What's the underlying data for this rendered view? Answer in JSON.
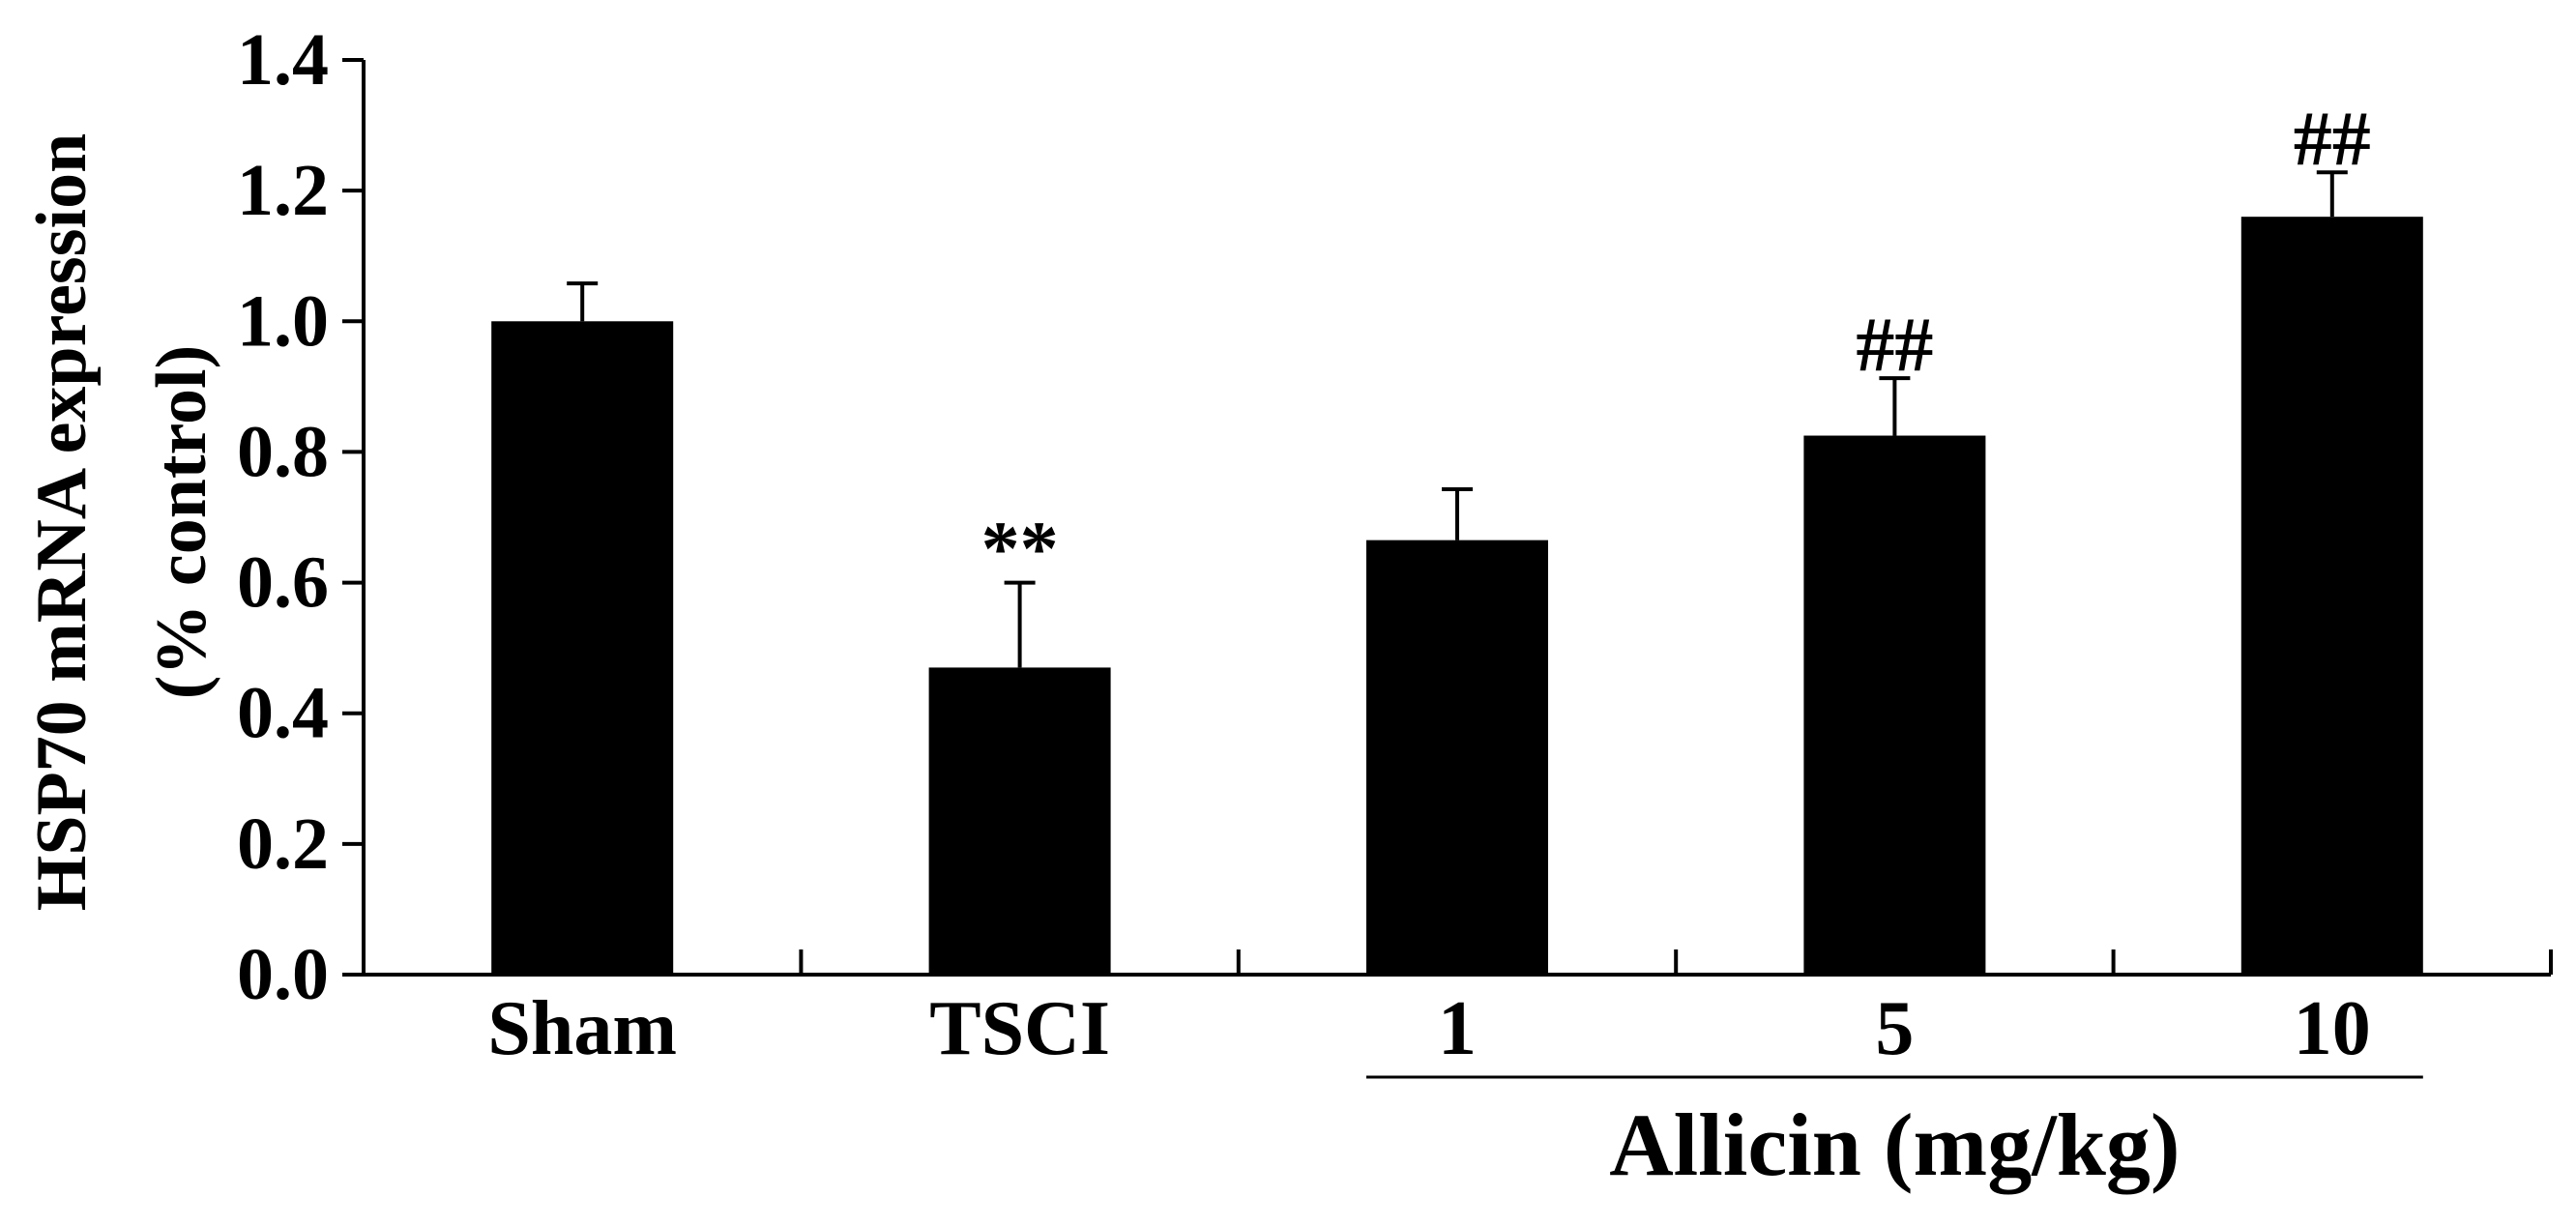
{
  "chart_data": {
    "type": "bar",
    "categories": [
      "Sham",
      "TSCI",
      "1",
      "5",
      "10"
    ],
    "values": [
      1.0,
      0.47,
      0.665,
      0.825,
      1.16
    ],
    "errors": [
      0.058,
      0.13,
      0.078,
      0.088,
      0.068
    ],
    "annotations": [
      "",
      "**",
      "",
      "##",
      "##"
    ],
    "ylabel_line1": "HSP70 mRNA expression",
    "ylabel_line2": "(% control)",
    "group_label": "Allicin (mg/kg)",
    "group_range": [
      "1",
      "10"
    ],
    "ylim": [
      0,
      1.4
    ],
    "yticks": [
      "0.0",
      "0.2",
      "0.4",
      "0.6",
      "0.8",
      "1.0",
      "1.2",
      "1.4"
    ],
    "grid": false,
    "bar_color": "#000000"
  }
}
